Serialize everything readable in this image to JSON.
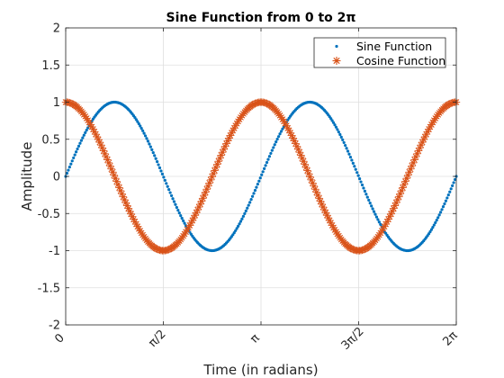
{
  "chart_data": {
    "type": "scatter",
    "title": "Sine Function from 0 to 2π",
    "xlabel": "Time (in radians)",
    "ylabel": "Amplitude",
    "xlim": [
      0,
      6.283185307179586
    ],
    "ylim": [
      -2,
      2
    ],
    "grid": true,
    "legend_position": "top-right",
    "x_ticks": [
      {
        "value": 0,
        "label": "0"
      },
      {
        "value": 1.5707963267948966,
        "label": "π/2"
      },
      {
        "value": 3.141592653589793,
        "label": "π"
      },
      {
        "value": 4.71238898038469,
        "label": "3π/2"
      },
      {
        "value": 6.283185307179586,
        "label": "2π"
      }
    ],
    "y_ticks": [
      {
        "value": 2,
        "label": "2"
      },
      {
        "value": 1.5,
        "label": "1.5"
      },
      {
        "value": 1,
        "label": "1"
      },
      {
        "value": 0.5,
        "label": "0.5"
      },
      {
        "value": 0,
        "label": "0"
      },
      {
        "value": -0.5,
        "label": "-0.5"
      },
      {
        "value": -1,
        "label": "-1"
      },
      {
        "value": -1.5,
        "label": "-1.5"
      },
      {
        "value": -2,
        "label": "-2"
      }
    ],
    "series": [
      {
        "name": "Sine Function",
        "function": "sin(2x)",
        "marker": "dot",
        "color": "#0072BD"
      },
      {
        "name": "Cosine Function",
        "function": "cos(2x)",
        "marker": "asterisk",
        "color": "#D95319"
      }
    ],
    "sample_count": 300
  }
}
